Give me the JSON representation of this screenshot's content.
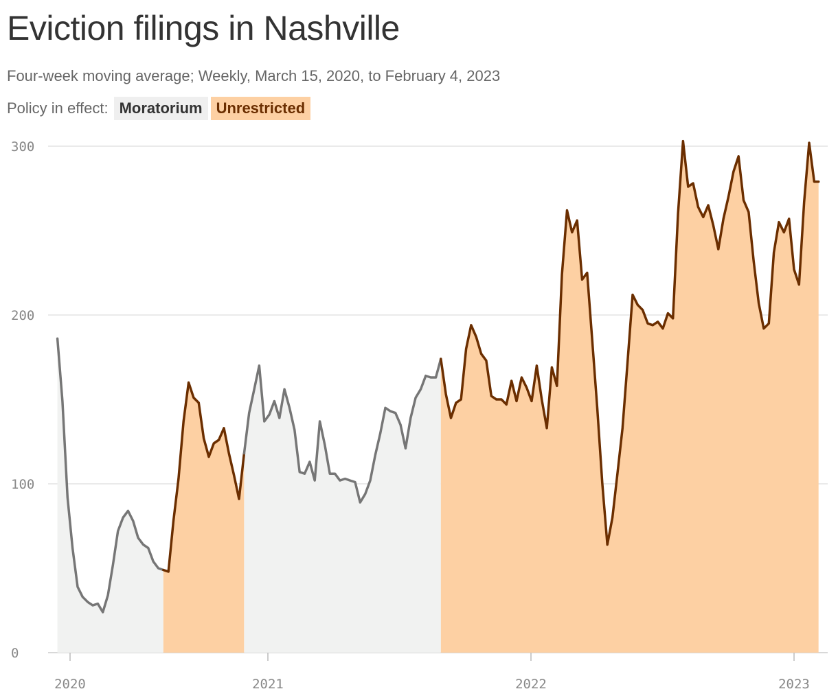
{
  "title": "Eviction filings in Nashville",
  "subtitle": "Four-week moving average; Weekly, March 15, 2020, to February 4, 2023",
  "legend": {
    "label": "Policy in effect:",
    "items": [
      {
        "label": "Moratorium",
        "color": "#f1f2f1",
        "line": "#767676"
      },
      {
        "label": "Unrestricted",
        "color": "#fdd0a3",
        "line": "#6b2e00"
      }
    ]
  },
  "chart_data": {
    "type": "line",
    "title": "Eviction filings in Nashville",
    "subtitle": "Four-week moving average; Weekly, March 15, 2020, to February 4, 2023",
    "xlabel": "",
    "ylabel": "",
    "ylim": [
      0,
      300
    ],
    "yticks": [
      0,
      100,
      200,
      300
    ],
    "xticks": [
      "2020",
      "2021",
      "2022",
      "2023"
    ],
    "grid": true,
    "x_start": "2020-03-15",
    "series": [
      {
        "values": [
          186,
          149,
          92,
          62,
          39,
          33,
          30,
          28,
          29,
          24,
          34,
          52,
          72,
          80,
          84,
          78,
          68,
          64,
          62,
          54,
          50,
          49,
          48,
          78,
          103,
          137,
          160,
          151,
          148,
          127,
          116,
          124,
          126,
          133,
          118,
          105,
          91,
          118,
          142,
          156,
          170,
          137,
          141,
          149,
          139,
          156,
          145,
          132,
          107,
          106,
          113,
          102,
          137,
          123,
          106,
          106,
          102,
          103,
          102,
          101,
          89,
          94,
          102,
          117,
          130,
          145,
          143,
          142,
          135,
          121,
          139,
          151,
          156,
          164,
          163,
          163,
          174,
          153,
          139,
          148,
          150,
          180,
          194,
          187,
          177,
          173,
          152,
          150,
          150,
          147,
          161,
          149,
          163,
          157,
          149,
          170,
          150,
          133,
          169,
          158,
          224,
          262,
          249,
          256,
          221,
          225,
          185,
          145,
          100,
          64,
          80,
          106,
          133,
          172,
          212,
          206,
          203,
          195,
          194,
          196,
          192,
          201,
          198,
          260,
          303,
          276,
          278,
          264,
          258,
          265,
          253,
          239,
          257,
          270,
          285,
          294,
          268,
          261,
          232,
          207,
          192,
          195,
          237,
          255,
          249,
          257,
          227,
          218,
          267,
          302,
          279
        ]
      }
    ],
    "periods": [
      {
        "policy": "Moratorium",
        "start": "2020-03-15",
        "end": "2020-08-09"
      },
      {
        "policy": "Unrestricted",
        "start": "2020-08-09",
        "end": "2020-11-29"
      },
      {
        "policy": "Moratorium",
        "start": "2020-11-29",
        "end": "2021-08-29"
      },
      {
        "policy": "Unrestricted",
        "start": "2021-08-29",
        "end": "2023-02-04"
      }
    ]
  }
}
